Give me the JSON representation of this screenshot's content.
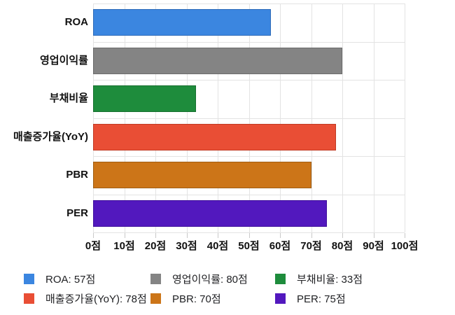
{
  "chart_data": {
    "type": "bar",
    "orientation": "horizontal",
    "title": "",
    "categories": [
      "ROA",
      "영업이익률",
      "부채비율",
      "매출증가율(YoY)",
      "PBR",
      "PER"
    ],
    "values": [
      57,
      80,
      33,
      78,
      70,
      75
    ],
    "unit": "점",
    "colors": [
      "#3b86e0",
      "#848484",
      "#1e8c3c",
      "#e94e35",
      "#cc7518",
      "#5218be"
    ],
    "bar_border_colors": [
      "#2f6bb8",
      "#6b6b6b",
      "#166f2e",
      "#c13a24",
      "#a05d12",
      "#40119c"
    ],
    "xlim": [
      0,
      100
    ],
    "x_tick_step": 10,
    "x_tick_labels": [
      "0점",
      "10점",
      "20점",
      "30점",
      "40점",
      "50점",
      "60점",
      "70점",
      "80점",
      "90점",
      "100점"
    ],
    "grid": true,
    "legend_position": "bottom",
    "legend_columns": 3,
    "legend_items": [
      {
        "label": "ROA: 57점",
        "color": "#3b86e0"
      },
      {
        "label": "영업이익률: 80점",
        "color": "#848484"
      },
      {
        "label": "부채비율: 33점",
        "color": "#1e8c3c"
      },
      {
        "label": "매출증가율(YoY): 78점",
        "color": "#e94e35"
      },
      {
        "label": "PBR: 70점",
        "color": "#cc7518"
      },
      {
        "label": "PER: 75점",
        "color": "#5218be"
      }
    ]
  },
  "styles": {
    "background": "#ffffff",
    "gridline_color": "#e3e3e3",
    "tick_color": "#c9c9c9",
    "axis_label_color": "#111111",
    "legend_text_color": "#202124"
  }
}
